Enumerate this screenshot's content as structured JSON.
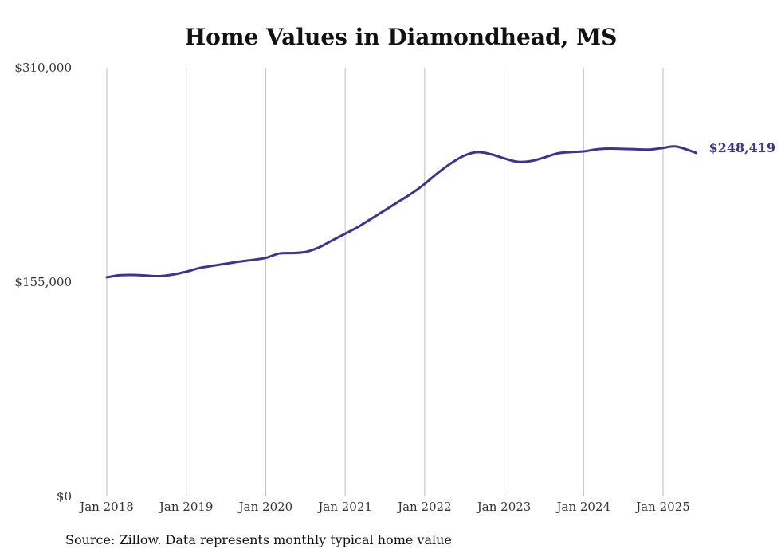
{
  "chart_data": {
    "type": "line",
    "title": "Home Values in Diamondhead, MS",
    "source": "Source: Zillow. Data represents monthly typical home value",
    "xlabel": "",
    "ylabel": "",
    "ylim": [
      0,
      310000
    ],
    "yticks": [
      0,
      155000,
      310000
    ],
    "ytick_labels": [
      "$0",
      "$155,000",
      "$310,000"
    ],
    "xlim": [
      "2018-01",
      "2025-06"
    ],
    "xticks": [
      "2018-01",
      "2019-01",
      "2020-01",
      "2021-01",
      "2022-01",
      "2023-01",
      "2024-01",
      "2025-01"
    ],
    "xtick_labels": [
      "Jan 2018",
      "Jan 2019",
      "Jan 2020",
      "Jan 2021",
      "Jan 2022",
      "Jan 2023",
      "Jan 2024",
      "Jan 2025"
    ],
    "grid": "vertical",
    "line_color": "#3d3391",
    "grid_color": "#bdbdbd",
    "end_label": "$248,419",
    "series": [
      {
        "x": [
          "2018-01",
          "2018-03",
          "2018-05",
          "2018-07",
          "2018-09",
          "2018-11",
          "2019-01",
          "2019-03",
          "2019-05",
          "2019-07",
          "2019-09",
          "2019-11",
          "2020-01",
          "2020-03",
          "2020-05",
          "2020-07",
          "2020-09",
          "2020-11",
          "2021-01",
          "2021-03",
          "2021-05",
          "2021-07",
          "2021-09",
          "2021-11",
          "2022-01",
          "2022-03",
          "2022-05",
          "2022-07",
          "2022-09",
          "2022-11",
          "2023-01",
          "2023-03",
          "2023-05",
          "2023-07",
          "2023-09",
          "2023-11",
          "2024-01",
          "2024-03",
          "2024-05",
          "2024-07",
          "2024-09",
          "2024-11",
          "2025-01",
          "2025-03",
          "2025-06"
        ],
        "values": [
          158500,
          160000,
          160200,
          159700,
          159300,
          160500,
          162500,
          165200,
          166800,
          168300,
          169800,
          171000,
          172500,
          175600,
          176000,
          176800,
          180000,
          185000,
          190000,
          195000,
          201000,
          207000,
          213000,
          219000,
          226000,
          234000,
          241000,
          246500,
          249000,
          247500,
          244500,
          242000,
          242500,
          245000,
          248000,
          249000,
          249500,
          251000,
          251500,
          251300,
          251000,
          250800,
          252000,
          253000,
          248419
        ]
      }
    ]
  }
}
